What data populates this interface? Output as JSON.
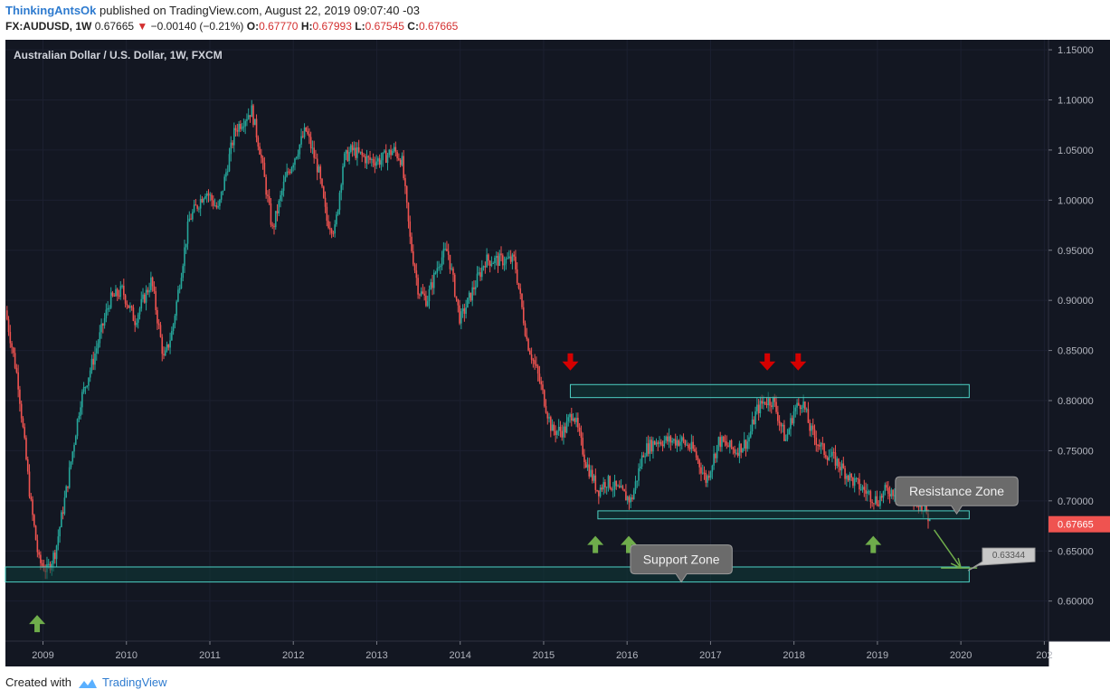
{
  "header": {
    "author": "ThinkingAntsOk",
    "published": "published on TradingView.com, August 22, 2019 09:07:40 -03",
    "symbol": "FX:AUDUSD, 1W",
    "last": "0.67665",
    "change": "−0.00140 (−0.21%)",
    "o_label": "O:",
    "o": "0.67770",
    "h_label": "H:",
    "h": "0.67993",
    "l_label": "L:",
    "l": "0.67545",
    "c_label": "C:",
    "c": "0.67665"
  },
  "footer": {
    "created_with": "Created with",
    "brand": "TradingView"
  },
  "colors": {
    "background": "#131722",
    "up": "#26a69a",
    "down": "#ef5350",
    "zone_border": "#4dd0c4",
    "zone_fill": "#0e3b38",
    "arrow_up": "#6fad4b",
    "arrow_down": "#d50000",
    "callout": "#6b6b6b",
    "price_badge": "#ef5350"
  },
  "chart_data": {
    "type": "candlestick",
    "title": "Australian Dollar / U.S. Dollar, 1W, FXCM",
    "ylim": [
      0.56,
      1.16
    ],
    "xlim": [
      2008.55,
      2021.05
    ],
    "y_ticks": [
      "1.15000",
      "1.10000",
      "1.05000",
      "1.00000",
      "0.95000",
      "0.90000",
      "0.85000",
      "0.80000",
      "0.75000",
      "0.70000",
      "0.65000",
      "0.60000"
    ],
    "x_ticks": [
      {
        "t": 2009,
        "label": "2009"
      },
      {
        "t": 2010,
        "label": "2010"
      },
      {
        "t": 2011,
        "label": "2011"
      },
      {
        "t": 2012,
        "label": "2012"
      },
      {
        "t": 2013,
        "label": "2013"
      },
      {
        "t": 2014,
        "label": "2014"
      },
      {
        "t": 2015,
        "label": "2015"
      },
      {
        "t": 2016,
        "label": "2016"
      },
      {
        "t": 2017,
        "label": "2017"
      },
      {
        "t": 2018,
        "label": "2018"
      },
      {
        "t": 2019,
        "label": "2019"
      },
      {
        "t": 2020,
        "label": "2020"
      },
      {
        "t": 2021,
        "label": "202"
      }
    ],
    "price_path": [
      [
        2008.55,
        0.89
      ],
      [
        2008.7,
        0.82
      ],
      [
        2008.85,
        0.7
      ],
      [
        2008.95,
        0.64
      ],
      [
        2009.05,
        0.63
      ],
      [
        2009.15,
        0.65
      ],
      [
        2009.3,
        0.72
      ],
      [
        2009.45,
        0.8
      ],
      [
        2009.6,
        0.84
      ],
      [
        2009.8,
        0.9
      ],
      [
        2009.95,
        0.91
      ],
      [
        2010.1,
        0.88
      ],
      [
        2010.3,
        0.92
      ],
      [
        2010.45,
        0.84
      ],
      [
        2010.55,
        0.87
      ],
      [
        2010.75,
        0.98
      ],
      [
        2010.95,
        1.01
      ],
      [
        2011.1,
        0.99
      ],
      [
        2011.3,
        1.07
      ],
      [
        2011.5,
        1.09
      ],
      [
        2011.6,
        1.05
      ],
      [
        2011.75,
        0.97
      ],
      [
        2011.9,
        1.02
      ],
      [
        2012.0,
        1.04
      ],
      [
        2012.15,
        1.07
      ],
      [
        2012.3,
        1.03
      ],
      [
        2012.4,
        0.98
      ],
      [
        2012.5,
        0.97
      ],
      [
        2012.6,
        1.04
      ],
      [
        2012.7,
        1.05
      ],
      [
        2012.9,
        1.04
      ],
      [
        2013.05,
        1.04
      ],
      [
        2013.2,
        1.05
      ],
      [
        2013.3,
        1.04
      ],
      [
        2013.4,
        0.96
      ],
      [
        2013.5,
        0.91
      ],
      [
        2013.6,
        0.9
      ],
      [
        2013.75,
        0.94
      ],
      [
        2013.85,
        0.95
      ],
      [
        2014.0,
        0.88
      ],
      [
        2014.15,
        0.91
      ],
      [
        2014.3,
        0.94
      ],
      [
        2014.5,
        0.94
      ],
      [
        2014.65,
        0.94
      ],
      [
        2014.8,
        0.86
      ],
      [
        2014.95,
        0.82
      ],
      [
        2015.1,
        0.77
      ],
      [
        2015.25,
        0.77
      ],
      [
        2015.35,
        0.79
      ],
      [
        2015.5,
        0.74
      ],
      [
        2015.65,
        0.71
      ],
      [
        2015.75,
        0.72
      ],
      [
        2015.9,
        0.71
      ],
      [
        2016.05,
        0.7
      ],
      [
        2016.2,
        0.75
      ],
      [
        2016.35,
        0.76
      ],
      [
        2016.5,
        0.76
      ],
      [
        2016.65,
        0.76
      ],
      [
        2016.8,
        0.75
      ],
      [
        2016.95,
        0.72
      ],
      [
        2017.1,
        0.76
      ],
      [
        2017.3,
        0.75
      ],
      [
        2017.45,
        0.76
      ],
      [
        2017.55,
        0.79
      ],
      [
        2017.65,
        0.8
      ],
      [
        2017.75,
        0.8
      ],
      [
        2017.9,
        0.76
      ],
      [
        2018.0,
        0.79
      ],
      [
        2018.1,
        0.8
      ],
      [
        2018.2,
        0.77
      ],
      [
        2018.35,
        0.75
      ],
      [
        2018.5,
        0.74
      ],
      [
        2018.7,
        0.72
      ],
      [
        2018.85,
        0.71
      ],
      [
        2019.0,
        0.7
      ],
      [
        2019.1,
        0.71
      ],
      [
        2019.25,
        0.71
      ],
      [
        2019.4,
        0.7
      ],
      [
        2019.5,
        0.7
      ],
      [
        2019.58,
        0.69
      ],
      [
        2019.64,
        0.677
      ]
    ],
    "zones": [
      {
        "name": "resistance-zone-rect",
        "t0": 2015.32,
        "t1": 2020.1,
        "ymin": 0.803,
        "ymax": 0.816
      },
      {
        "name": "lower-range-rect",
        "t0": 2015.65,
        "t1": 2020.1,
        "ymin": 0.682,
        "ymax": 0.69
      },
      {
        "name": "support-zone-rect",
        "t0": 2008.55,
        "t1": 2020.1,
        "ymin": 0.619,
        "ymax": 0.634
      }
    ],
    "arrows_down": [
      {
        "t": 2015.32,
        "y": 0.83
      },
      {
        "t": 2017.68,
        "y": 0.83
      },
      {
        "t": 2018.05,
        "y": 0.83
      }
    ],
    "arrows_up": [
      {
        "t": 2008.93,
        "y": 0.586
      },
      {
        "t": 2015.62,
        "y": 0.665
      },
      {
        "t": 2016.02,
        "y": 0.665
      },
      {
        "t": 2018.95,
        "y": 0.665
      }
    ],
    "projection": {
      "from": [
        2019.68,
        0.671
      ],
      "to": [
        2020.0,
        0.633
      ]
    },
    "callouts": [
      {
        "label": "Resistance Zone",
        "t": 2019.95,
        "y": 0.724
      },
      {
        "label": "Support Zone",
        "t": 2016.65,
        "y": 0.656
      }
    ],
    "target_label": {
      "value": "0.63344",
      "y": 0.633
    },
    "last_price": {
      "value": "0.67665",
      "y": 0.67665
    }
  }
}
